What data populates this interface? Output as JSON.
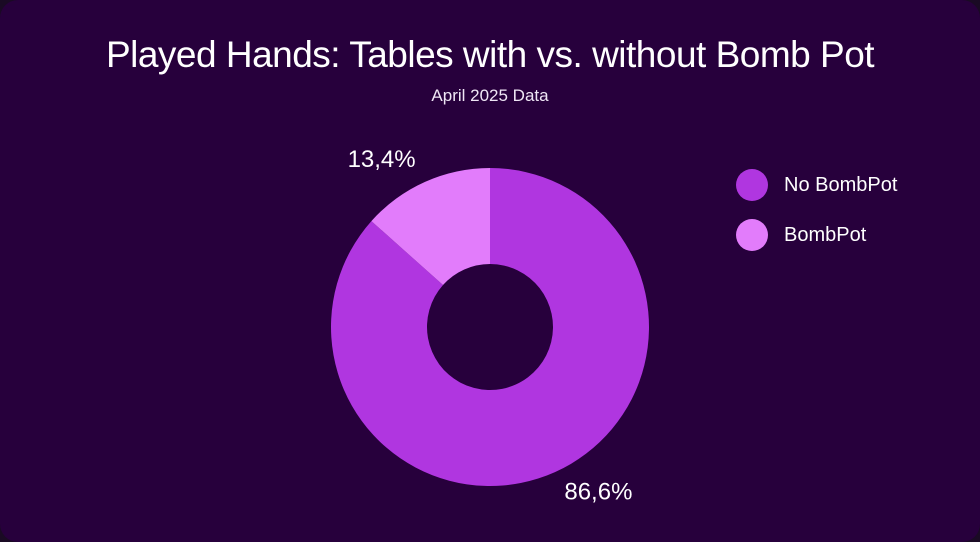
{
  "chart_data": {
    "type": "pie",
    "style": "donut",
    "title": "Played Hands: Tables with vs. without Bomb Pot",
    "subtitle": "April 2025 Data",
    "legend_position": "right",
    "slices": [
      {
        "label": "No BombPot",
        "value": 86.6,
        "display": "86,6%",
        "color": "#b036e0"
      },
      {
        "label": "BombPot",
        "value": 13.4,
        "display": "13,4%",
        "color": "#e27cfb"
      }
    ]
  },
  "colors": {
    "background": "#27003c",
    "text": "#ffffff"
  }
}
